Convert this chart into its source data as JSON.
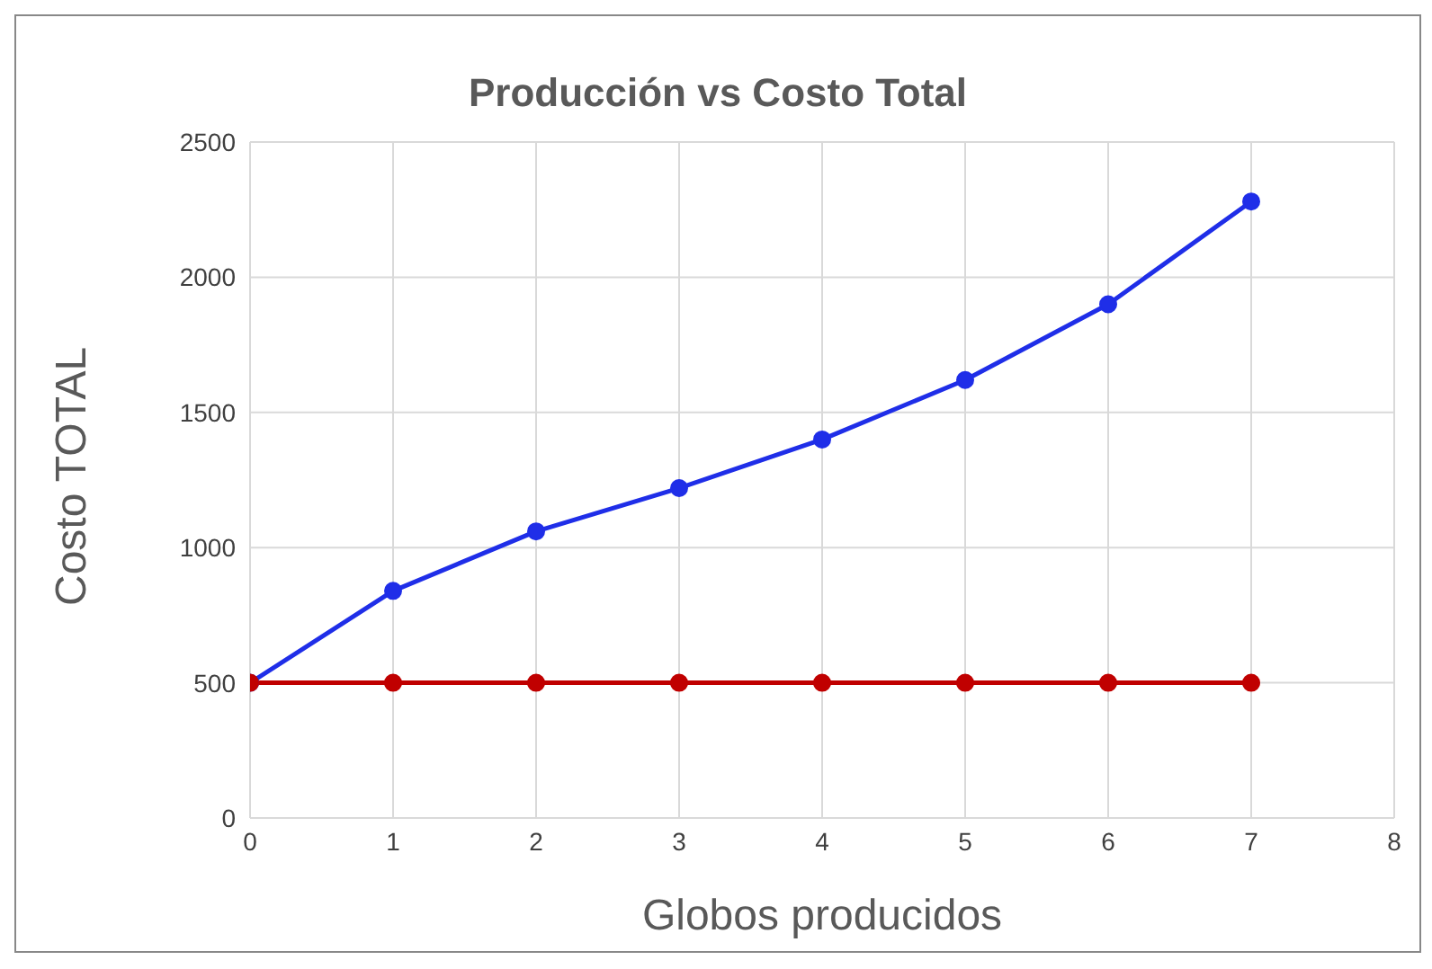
{
  "chart_data": {
    "type": "line",
    "title": "Producción vs Costo Total",
    "xlabel": "Globos producidos",
    "ylabel": "Costo TOTAL",
    "x": [
      0,
      1,
      2,
      3,
      4,
      5,
      6,
      7
    ],
    "series": [
      {
        "color": "#1f2ee8",
        "values": [
          500,
          840,
          1060,
          1220,
          1400,
          1620,
          1900,
          2280
        ]
      },
      {
        "color": "#c00000",
        "values": [
          500,
          500,
          500,
          500,
          500,
          500,
          500,
          500
        ]
      }
    ],
    "xlim": [
      0,
      8
    ],
    "xticks": [
      0,
      1,
      2,
      3,
      4,
      5,
      6,
      7,
      8
    ],
    "ylim": [
      0,
      2500
    ],
    "yticks": [
      0,
      500,
      1000,
      1500,
      2000,
      2500
    ],
    "grid": true,
    "marker": "circle",
    "line_style": "solid"
  }
}
